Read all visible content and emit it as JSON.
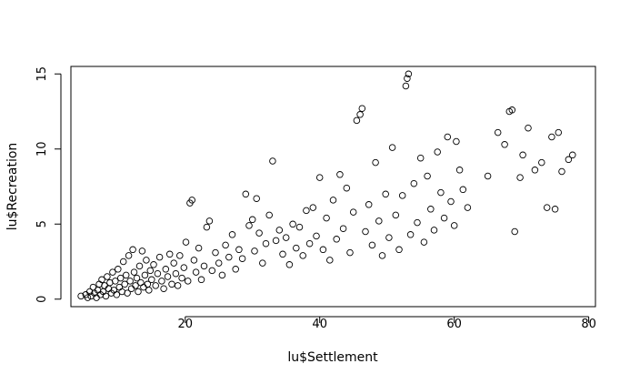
{
  "chart_data": {
    "type": "scatter",
    "title": "",
    "xlabel": "lu$Settlement",
    "ylabel": "lu$Recreation",
    "xlim": [
      3,
      81
    ],
    "ylim": [
      -0.5,
      15.5
    ],
    "x_ticks": [
      20,
      40,
      60,
      80
    ],
    "y_ticks": [
      0,
      5,
      10,
      15
    ],
    "x_tick_labels": [
      "20",
      "40",
      "60",
      "80"
    ],
    "y_tick_labels": [
      "0",
      "5",
      "10",
      "15"
    ],
    "grid": false,
    "legend": "none",
    "marker": "open-circle",
    "point_color": "#000000",
    "series": [
      {
        "values": [
          [
            4.5,
            0.2
          ],
          [
            5.2,
            0.3
          ],
          [
            5.5,
            0.1
          ],
          [
            5.8,
            0.5
          ],
          [
            6.0,
            0.2
          ],
          [
            6.3,
            0.8
          ],
          [
            6.5,
            0.4
          ],
          [
            6.8,
            0.1
          ],
          [
            7.0,
            0.6
          ],
          [
            7.2,
            1.0
          ],
          [
            7.4,
            0.3
          ],
          [
            7.6,
            1.3
          ],
          [
            7.8,
            0.5
          ],
          [
            8.0,
            0.9
          ],
          [
            8.2,
            0.2
          ],
          [
            8.4,
            1.5
          ],
          [
            8.6,
            0.7
          ],
          [
            8.8,
            1.1
          ],
          [
            9.0,
            0.4
          ],
          [
            9.2,
            1.8
          ],
          [
            9.4,
            0.6
          ],
          [
            9.6,
            1.2
          ],
          [
            9.8,
            0.3
          ],
          [
            10.0,
            2.0
          ],
          [
            10.2,
            0.8
          ],
          [
            10.4,
            1.4
          ],
          [
            10.6,
            0.5
          ],
          [
            10.8,
            2.5
          ],
          [
            11.0,
            1.0
          ],
          [
            11.2,
            1.6
          ],
          [
            11.4,
            0.4
          ],
          [
            11.6,
            2.9
          ],
          [
            11.8,
            1.2
          ],
          [
            12.0,
            0.7
          ],
          [
            12.2,
            3.3
          ],
          [
            12.4,
            1.8
          ],
          [
            12.6,
            0.9
          ],
          [
            12.8,
            1.4
          ],
          [
            13.0,
            0.5
          ],
          [
            13.2,
            2.2
          ],
          [
            13.4,
            1.1
          ],
          [
            13.6,
            3.2
          ],
          [
            13.8,
            0.8
          ],
          [
            14.0,
            1.6
          ],
          [
            14.2,
            2.6
          ],
          [
            14.4,
            1.0
          ],
          [
            14.6,
            0.6
          ],
          [
            14.8,
            1.9
          ],
          [
            15.0,
            1.3
          ],
          [
            15.3,
            2.3
          ],
          [
            15.6,
            0.9
          ],
          [
            15.9,
            1.7
          ],
          [
            16.2,
            2.8
          ],
          [
            16.5,
            1.2
          ],
          [
            16.8,
            0.7
          ],
          [
            17.1,
            2.0
          ],
          [
            17.4,
            1.5
          ],
          [
            17.7,
            3.0
          ],
          [
            18.0,
            1.0
          ],
          [
            18.3,
            2.4
          ],
          [
            18.6,
            1.7
          ],
          [
            18.9,
            0.9
          ],
          [
            19.2,
            2.9
          ],
          [
            19.5,
            1.4
          ],
          [
            19.8,
            2.1
          ],
          [
            20.1,
            3.8
          ],
          [
            20.4,
            1.2
          ],
          [
            20.7,
            6.4
          ],
          [
            21.0,
            6.6
          ],
          [
            21.3,
            2.6
          ],
          [
            21.6,
            1.8
          ],
          [
            22.0,
            3.4
          ],
          [
            22.4,
            1.3
          ],
          [
            22.8,
            2.2
          ],
          [
            23.2,
            4.8
          ],
          [
            23.6,
            5.2
          ],
          [
            24.0,
            1.9
          ],
          [
            24.5,
            3.1
          ],
          [
            25.0,
            2.4
          ],
          [
            25.5,
            1.6
          ],
          [
            26.0,
            3.6
          ],
          [
            26.5,
            2.8
          ],
          [
            27.0,
            4.3
          ],
          [
            27.5,
            2.0
          ],
          [
            28.0,
            3.3
          ],
          [
            28.5,
            2.7
          ],
          [
            29.0,
            7.0
          ],
          [
            29.5,
            4.9
          ],
          [
            30.0,
            5.3
          ],
          [
            30.3,
            3.2
          ],
          [
            30.6,
            6.7
          ],
          [
            31.0,
            4.4
          ],
          [
            31.5,
            2.4
          ],
          [
            32.0,
            3.7
          ],
          [
            32.5,
            5.6
          ],
          [
            33.0,
            9.2
          ],
          [
            33.5,
            3.9
          ],
          [
            34.0,
            4.6
          ],
          [
            34.5,
            3.0
          ],
          [
            35.0,
            4.1
          ],
          [
            35.5,
            2.3
          ],
          [
            36.0,
            5.0
          ],
          [
            36.5,
            3.4
          ],
          [
            37.0,
            4.8
          ],
          [
            37.5,
            2.9
          ],
          [
            38.0,
            5.9
          ],
          [
            38.5,
            3.7
          ],
          [
            39.0,
            6.1
          ],
          [
            39.5,
            4.2
          ],
          [
            40.0,
            8.1
          ],
          [
            40.5,
            3.3
          ],
          [
            41.0,
            5.4
          ],
          [
            41.5,
            2.6
          ],
          [
            42.0,
            6.6
          ],
          [
            42.5,
            4.0
          ],
          [
            43.0,
            8.3
          ],
          [
            43.5,
            4.7
          ],
          [
            44.0,
            7.4
          ],
          [
            44.5,
            3.1
          ],
          [
            45.0,
            5.8
          ],
          [
            45.5,
            11.9
          ],
          [
            46.0,
            12.3
          ],
          [
            46.3,
            12.7
          ],
          [
            46.8,
            4.5
          ],
          [
            47.3,
            6.3
          ],
          [
            47.8,
            3.6
          ],
          [
            48.3,
            9.1
          ],
          [
            48.8,
            5.2
          ],
          [
            49.3,
            2.9
          ],
          [
            49.8,
            7.0
          ],
          [
            50.3,
            4.1
          ],
          [
            50.8,
            10.1
          ],
          [
            51.3,
            5.6
          ],
          [
            51.8,
            3.3
          ],
          [
            52.3,
            6.9
          ],
          [
            52.8,
            14.2
          ],
          [
            53.0,
            14.7
          ],
          [
            53.2,
            15.0
          ],
          [
            53.5,
            4.3
          ],
          [
            54.0,
            7.7
          ],
          [
            54.5,
            5.1
          ],
          [
            55.0,
            9.4
          ],
          [
            55.5,
            3.8
          ],
          [
            56.0,
            8.2
          ],
          [
            56.5,
            6.0
          ],
          [
            57.0,
            4.6
          ],
          [
            57.5,
            9.8
          ],
          [
            58.0,
            7.1
          ],
          [
            58.5,
            5.4
          ],
          [
            59.0,
            10.8
          ],
          [
            59.5,
            6.5
          ],
          [
            60.0,
            4.9
          ],
          [
            60.3,
            10.5
          ],
          [
            60.8,
            8.6
          ],
          [
            61.3,
            7.3
          ],
          [
            62.0,
            6.1
          ],
          [
            65.0,
            8.2
          ],
          [
            66.5,
            11.1
          ],
          [
            67.5,
            10.3
          ],
          [
            68.2,
            12.5
          ],
          [
            68.6,
            12.6
          ],
          [
            69.0,
            4.5
          ],
          [
            69.8,
            8.1
          ],
          [
            70.2,
            9.6
          ],
          [
            71.0,
            11.4
          ],
          [
            72.0,
            8.6
          ],
          [
            73.0,
            9.1
          ],
          [
            73.8,
            6.1
          ],
          [
            74.5,
            10.8
          ],
          [
            75.0,
            6.0
          ],
          [
            75.5,
            11.1
          ],
          [
            76.0,
            8.5
          ],
          [
            77.0,
            9.3
          ],
          [
            77.6,
            9.6
          ]
        ]
      }
    ]
  }
}
